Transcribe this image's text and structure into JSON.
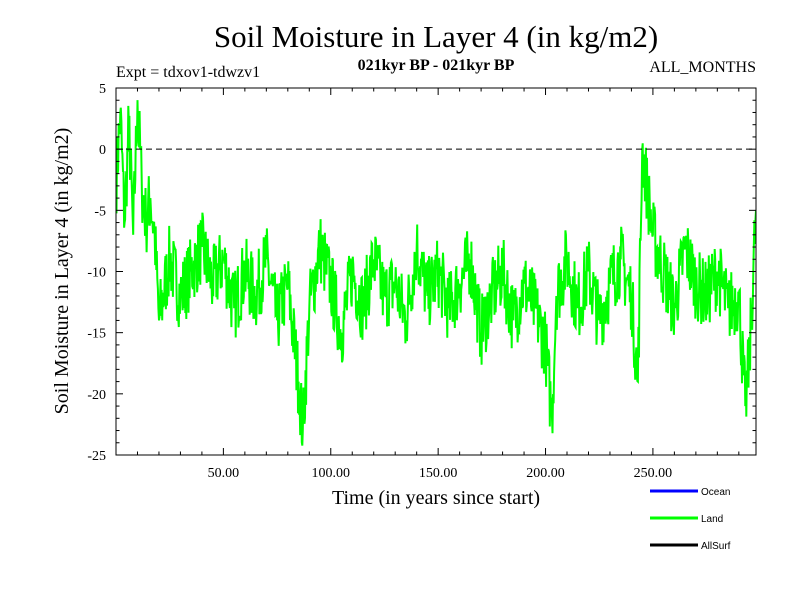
{
  "chart_data": {
    "type": "line",
    "title": "Soil Moisture in Layer 4 (in kg/m2)",
    "subtitle_left": "Expt = tdxov1-tdwzv1",
    "subtitle_center": "021kyr BP - 021kyr BP",
    "subtitle_right": "ALL_MONTHS",
    "xlabel": "Time (in years since start)",
    "ylabel": "Soil Moisture in Layer 4 (in kg/m2)",
    "xlim": [
      0,
      298
    ],
    "ylim": [
      -25,
      5
    ],
    "x_ticks": [
      50,
      100,
      150,
      200,
      250
    ],
    "x_tick_labels": [
      "50.00",
      "100.00",
      "150.00",
      "200.00",
      "250.00"
    ],
    "y_ticks": [
      5,
      0,
      -5,
      -10,
      -15,
      -20,
      -25
    ],
    "y_tick_labels": [
      "5",
      "0",
      "-5",
      "-10",
      "-15",
      "-20",
      "-25"
    ],
    "reference_line": 0,
    "legend": [
      {
        "name": "Ocean",
        "color": "#0000ff"
      },
      {
        "name": "Land",
        "color": "#00ff00"
      },
      {
        "name": "AllSurf",
        "color": "#000000"
      }
    ],
    "series": [
      {
        "name": "Land",
        "color": "#00ff00",
        "x": [
          0,
          2,
          4,
          6,
          8,
          10,
          12,
          14,
          16,
          18,
          20,
          25,
          30,
          35,
          40,
          45,
          50,
          55,
          60,
          65,
          70,
          75,
          80,
          85,
          87,
          90,
          95,
          100,
          105,
          110,
          115,
          120,
          125,
          130,
          135,
          140,
          145,
          150,
          155,
          160,
          165,
          170,
          175,
          180,
          185,
          190,
          195,
          200,
          203,
          205,
          210,
          215,
          220,
          225,
          230,
          235,
          240,
          243,
          245,
          250,
          255,
          260,
          265,
          270,
          275,
          280,
          285,
          290,
          293,
          295,
          298
        ],
        "values": [
          -3,
          3,
          -6,
          2,
          -7,
          4,
          -3,
          -6,
          -4,
          -7,
          -14,
          -9,
          -12,
          -10,
          -8,
          -11,
          -9,
          -13,
          -10,
          -12,
          -9,
          -14,
          -11,
          -19,
          -23,
          -13,
          -8,
          -11,
          -15,
          -10,
          -13,
          -9,
          -12,
          -11,
          -14,
          -8,
          -12,
          -10,
          -13,
          -11,
          -9,
          -15,
          -12,
          -10,
          -14,
          -11,
          -13,
          -16,
          -22,
          -12,
          -9,
          -13,
          -10,
          -14,
          -11,
          -9,
          -12,
          -19,
          0,
          -7,
          -10,
          -13,
          -8,
          -11,
          -12,
          -10,
          -13,
          -12,
          -21,
          -17,
          -5
        ]
      }
    ]
  }
}
